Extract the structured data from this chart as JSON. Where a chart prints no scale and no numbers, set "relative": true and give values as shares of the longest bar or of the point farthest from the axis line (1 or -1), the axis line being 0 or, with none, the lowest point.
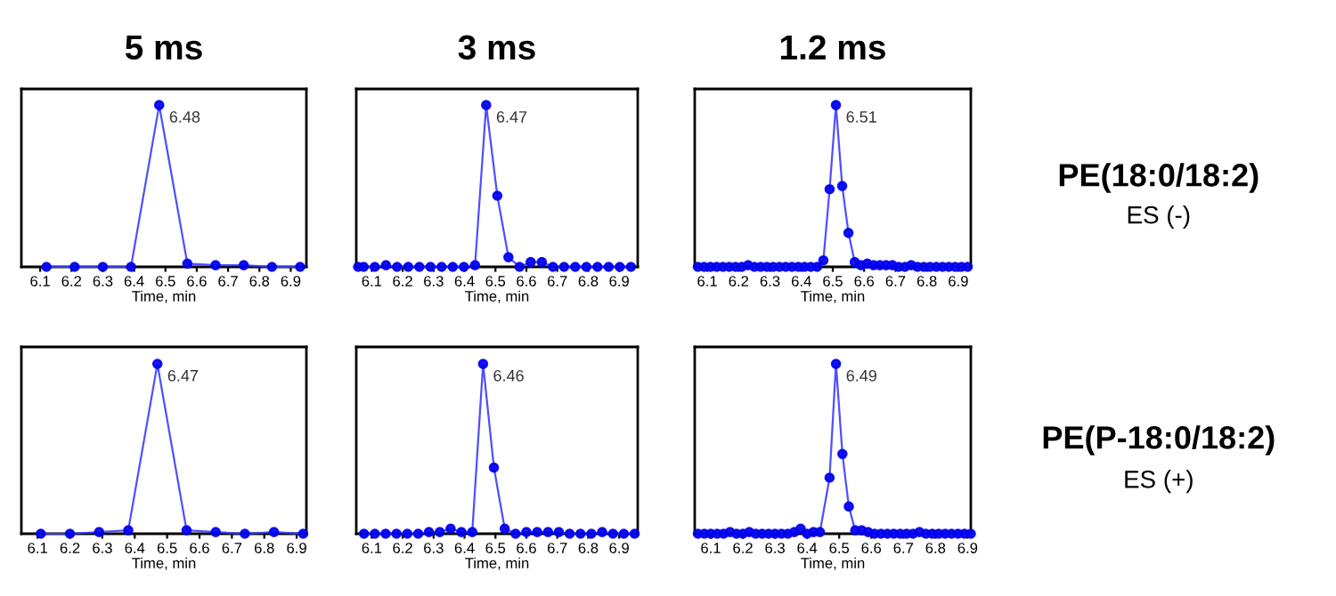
{
  "chart_data": [
    {
      "type": "line",
      "title": "5 ms",
      "xlabel": "Time, min",
      "relative": true,
      "marker": "circle",
      "tick_labels": "x",
      "xlim": [
        6.04,
        6.95
      ],
      "xticks": [
        6.1,
        6.2,
        6.3,
        6.4,
        6.5,
        6.6,
        6.7,
        6.8,
        6.9
      ],
      "x": [
        6.12,
        6.21,
        6.3,
        6.39,
        6.48,
        6.57,
        6.66,
        6.75,
        6.84,
        6.93
      ],
      "series": [
        {
          "color": "#3c3cff",
          "values": [
            0,
            0,
            0,
            0,
            1,
            0.02,
            0.01,
            0.01,
            0,
            0
          ]
        }
      ],
      "annotations": [
        {
          "text": "6.48",
          "x": 6.48,
          "y": 1
        }
      ]
    },
    {
      "type": "line",
      "title": "3 ms",
      "xlabel": "Time, min",
      "relative": true,
      "marker": "circle",
      "tick_labels": "x",
      "xlim": [
        6.05,
        6.96
      ],
      "xticks": [
        6.1,
        6.2,
        6.3,
        6.4,
        6.5,
        6.6,
        6.7,
        6.8,
        6.9
      ],
      "x": [
        6.056,
        6.074,
        6.11,
        6.146,
        6.182,
        6.218,
        6.254,
        6.29,
        6.326,
        6.362,
        6.398,
        6.434,
        6.47,
        6.506,
        6.542,
        6.578,
        6.614,
        6.65,
        6.686,
        6.722,
        6.758,
        6.794,
        6.83,
        6.866,
        6.902,
        6.938
      ],
      "series": [
        {
          "color": "#3c3cff",
          "values": [
            0,
            0,
            0,
            0.01,
            0,
            0,
            0,
            0,
            0,
            0,
            0,
            0.01,
            1,
            0.44,
            0.06,
            0,
            0.03,
            0.03,
            0,
            0,
            0,
            0,
            0,
            0,
            0,
            0
          ]
        }
      ],
      "annotations": [
        {
          "text": "6.47",
          "x": 6.47,
          "y": 1
        }
      ]
    },
    {
      "type": "line",
      "title": "1.2 ms",
      "xlabel": "Time, min",
      "relative": true,
      "marker": "circle",
      "tick_labels": "x",
      "xlim": [
        6.06,
        6.94
      ],
      "xticks": [
        6.1,
        6.2,
        6.3,
        6.4,
        6.5,
        6.6,
        6.7,
        6.8,
        6.9
      ],
      "x": [
        6.07,
        6.09,
        6.11,
        6.13,
        6.15,
        6.17,
        6.19,
        6.21,
        6.23,
        6.25,
        6.27,
        6.29,
        6.31,
        6.33,
        6.35,
        6.37,
        6.39,
        6.41,
        6.43,
        6.45,
        6.47,
        6.49,
        6.51,
        6.53,
        6.55,
        6.57,
        6.59,
        6.61,
        6.63,
        6.65,
        6.67,
        6.69,
        6.71,
        6.73,
        6.75,
        6.77,
        6.79,
        6.81,
        6.83,
        6.85,
        6.87,
        6.89,
        6.91,
        6.93
      ],
      "series": [
        {
          "color": "#3c3cff",
          "values": [
            0,
            0,
            0,
            0,
            0,
            0,
            0,
            0,
            0.01,
            0,
            0,
            0,
            0,
            0,
            0,
            0,
            0,
            0,
            0,
            0,
            0.04,
            0.48,
            1,
            0.5,
            0.21,
            0.03,
            0.01,
            0.02,
            0.01,
            0.01,
            0.01,
            0.01,
            0,
            0,
            0.01,
            0,
            0,
            0,
            0,
            0,
            0,
            0,
            0,
            0
          ]
        }
      ],
      "annotations": [
        {
          "text": "6.51",
          "x": 6.51,
          "y": 1
        },
        "PE(18:0/18:2)",
        "ES (-)"
      ]
    },
    {
      "type": "line",
      "xlabel": "Time, min",
      "relative": true,
      "marker": "circle",
      "tick_labels": "x",
      "xlim": [
        6.05,
        6.93
      ],
      "xticks": [
        6.1,
        6.2,
        6.3,
        6.4,
        6.5,
        6.6,
        6.7,
        6.8,
        6.9
      ],
      "x": [
        6.11,
        6.2,
        6.29,
        6.38,
        6.47,
        6.56,
        6.65,
        6.74,
        6.83,
        6.92
      ],
      "series": [
        {
          "color": "#3c3cff",
          "values": [
            0,
            0,
            0.01,
            0.02,
            1,
            0.02,
            0.01,
            0,
            0.01,
            0
          ]
        }
      ],
      "annotations": [
        {
          "text": "6.47",
          "x": 6.47,
          "y": 1
        }
      ]
    },
    {
      "type": "line",
      "xlabel": "Time, min",
      "relative": true,
      "marker": "circle",
      "tick_labels": "x",
      "xlim": [
        6.05,
        6.96
      ],
      "xticks": [
        6.1,
        6.2,
        6.3,
        6.4,
        6.5,
        6.6,
        6.7,
        6.8,
        6.9
      ],
      "x": [
        6.075,
        6.11,
        6.145,
        6.18,
        6.215,
        6.25,
        6.285,
        6.32,
        6.355,
        6.39,
        6.425,
        6.46,
        6.495,
        6.53,
        6.565,
        6.6,
        6.635,
        6.67,
        6.705,
        6.74,
        6.775,
        6.81,
        6.845,
        6.88,
        6.915,
        6.95
      ],
      "series": [
        {
          "color": "#3c3cff",
          "values": [
            0,
            0,
            0,
            0,
            0,
            0,
            0.01,
            0.01,
            0.03,
            0.01,
            0.01,
            1,
            0.39,
            0.03,
            0,
            0.01,
            0.01,
            0.01,
            0.01,
            0,
            0,
            0,
            0.01,
            0,
            0,
            0
          ]
        }
      ],
      "annotations": [
        {
          "text": "6.46",
          "x": 6.46,
          "y": 1
        }
      ]
    },
    {
      "type": "line",
      "xlabel": "Time, min",
      "relative": true,
      "marker": "circle",
      "tick_labels": "x",
      "xlim": [
        6.05,
        6.91
      ],
      "xticks": [
        6.1,
        6.2,
        6.3,
        6.4,
        6.5,
        6.6,
        6.7,
        6.8,
        6.9
      ],
      "x": [
        6.06,
        6.08,
        6.1,
        6.12,
        6.14,
        6.16,
        6.18,
        6.2,
        6.22,
        6.24,
        6.26,
        6.28,
        6.3,
        6.32,
        6.34,
        6.36,
        6.38,
        6.4,
        6.42,
        6.44,
        6.47,
        6.49,
        6.51,
        6.53,
        6.55,
        6.57,
        6.59,
        6.61,
        6.63,
        6.65,
        6.67,
        6.69,
        6.71,
        6.73,
        6.75,
        6.77,
        6.79,
        6.81,
        6.83,
        6.85,
        6.87,
        6.89,
        6.91
      ],
      "series": [
        {
          "color": "#3c3cff",
          "values": [
            0,
            0,
            0,
            0,
            0,
            0.01,
            0,
            0,
            0.01,
            0,
            0,
            0,
            0,
            0,
            0,
            0.01,
            0.03,
            0,
            0.01,
            0.01,
            0.33,
            1,
            0.47,
            0.16,
            0.02,
            0.02,
            0.01,
            0,
            0,
            0,
            0,
            0,
            0,
            0,
            0.01,
            0,
            0,
            0,
            0,
            0,
            0,
            0,
            0
          ]
        }
      ],
      "annotations": [
        {
          "text": "6.49",
          "x": 6.49,
          "y": 1
        },
        "PE(P-18:0/18:2)",
        "ES (+)"
      ]
    }
  ]
}
